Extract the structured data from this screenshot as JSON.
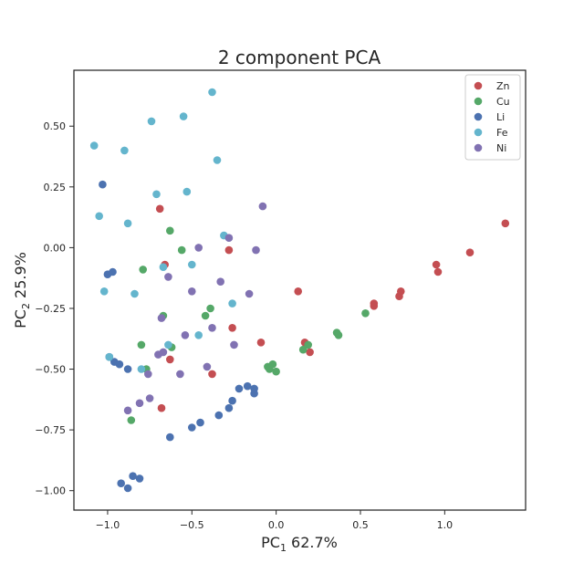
{
  "chart_data": {
    "type": "scatter",
    "title": "2 component PCA",
    "xlabel": {
      "base": "PC",
      "sub": "1",
      "suffix": " 62.7%"
    },
    "ylabel": {
      "base": "PC",
      "sub": "2",
      "suffix": " 25.9%"
    },
    "xlim": [
      -1.2,
      1.48
    ],
    "ylim": [
      -1.08,
      0.73
    ],
    "xticks": [
      -1.0,
      -0.5,
      0.0,
      0.5,
      1.0
    ],
    "xtick_labels": [
      "−1.0",
      "−0.5",
      "0.0",
      "0.5",
      "1.0"
    ],
    "yticks": [
      -1.0,
      -0.75,
      -0.5,
      -0.25,
      0.0,
      0.25,
      0.5
    ],
    "ytick_labels": [
      "−1.00",
      "−0.75",
      "−0.50",
      "−0.25",
      "0.00",
      "0.25",
      "0.50"
    ],
    "grid": false,
    "legend_position": "top-right",
    "series": [
      {
        "name": "Zn",
        "color": "#c44e52",
        "points": [
          [
            -0.69,
            0.16
          ],
          [
            -0.66,
            -0.07
          ],
          [
            -0.28,
            -0.01
          ],
          [
            -0.63,
            -0.46
          ],
          [
            -0.38,
            -0.52
          ],
          [
            -0.68,
            -0.66
          ],
          [
            -0.26,
            -0.33
          ],
          [
            -0.09,
            -0.39
          ],
          [
            0.13,
            -0.18
          ],
          [
            0.17,
            -0.39
          ],
          [
            0.2,
            -0.43
          ],
          [
            0.58,
            -0.23
          ],
          [
            0.58,
            -0.24
          ],
          [
            0.73,
            -0.2
          ],
          [
            0.74,
            -0.18
          ],
          [
            0.95,
            -0.07
          ],
          [
            0.96,
            -0.1
          ],
          [
            1.15,
            -0.02
          ],
          [
            1.36,
            0.1
          ]
        ]
      },
      {
        "name": "Cu",
        "color": "#55a868",
        "points": [
          [
            -0.63,
            0.07
          ],
          [
            -0.56,
            -0.01
          ],
          [
            -0.79,
            -0.09
          ],
          [
            -0.39,
            -0.25
          ],
          [
            -0.42,
            -0.28
          ],
          [
            -0.67,
            -0.28
          ],
          [
            -0.8,
            -0.4
          ],
          [
            -0.62,
            -0.41
          ],
          [
            -0.77,
            -0.5
          ],
          [
            -0.86,
            -0.71
          ],
          [
            -0.05,
            -0.49
          ],
          [
            -0.04,
            -0.5
          ],
          [
            -0.02,
            -0.48
          ],
          [
            -0.0,
            -0.51
          ],
          [
            0.16,
            -0.42
          ],
          [
            0.19,
            -0.4
          ],
          [
            0.36,
            -0.35
          ],
          [
            0.37,
            -0.36
          ],
          [
            0.53,
            -0.27
          ]
        ]
      },
      {
        "name": "Li",
        "color": "#4c72b0",
        "points": [
          [
            -1.03,
            0.26
          ],
          [
            -1.0,
            -0.11
          ],
          [
            -0.97,
            -0.1
          ],
          [
            -0.99,
            -0.45
          ],
          [
            -0.96,
            -0.47
          ],
          [
            -0.93,
            -0.48
          ],
          [
            -0.88,
            -0.5
          ],
          [
            -0.92,
            -0.97
          ],
          [
            -0.88,
            -0.99
          ],
          [
            -0.85,
            -0.94
          ],
          [
            -0.81,
            -0.95
          ],
          [
            -0.63,
            -0.78
          ],
          [
            -0.5,
            -0.74
          ],
          [
            -0.45,
            -0.72
          ],
          [
            -0.34,
            -0.69
          ],
          [
            -0.28,
            -0.66
          ],
          [
            -0.26,
            -0.63
          ],
          [
            -0.22,
            -0.58
          ],
          [
            -0.17,
            -0.57
          ],
          [
            -0.13,
            -0.58
          ],
          [
            -0.13,
            -0.6
          ]
        ]
      },
      {
        "name": "Fe",
        "color": "#64b5cd",
        "points": [
          [
            -1.08,
            0.42
          ],
          [
            -0.9,
            0.4
          ],
          [
            -0.74,
            0.52
          ],
          [
            -0.55,
            0.54
          ],
          [
            -0.38,
            0.64
          ],
          [
            -0.35,
            0.36
          ],
          [
            -1.05,
            0.13
          ],
          [
            -0.88,
            0.1
          ],
          [
            -0.71,
            0.22
          ],
          [
            -0.53,
            0.23
          ],
          [
            -0.31,
            0.05
          ],
          [
            -0.67,
            -0.08
          ],
          [
            -0.5,
            -0.07
          ],
          [
            -1.02,
            -0.18
          ],
          [
            -0.84,
            -0.19
          ],
          [
            -0.26,
            -0.23
          ],
          [
            -0.46,
            -0.36
          ],
          [
            -0.64,
            -0.4
          ],
          [
            -0.99,
            -0.45
          ],
          [
            -0.8,
            -0.5
          ]
        ]
      },
      {
        "name": "Ni",
        "color": "#8172b2",
        "points": [
          [
            -0.46,
            0.0
          ],
          [
            -0.28,
            0.04
          ],
          [
            -0.08,
            0.17
          ],
          [
            -0.12,
            -0.01
          ],
          [
            -0.64,
            -0.12
          ],
          [
            -0.33,
            -0.14
          ],
          [
            -0.5,
            -0.18
          ],
          [
            -0.16,
            -0.19
          ],
          [
            -0.68,
            -0.29
          ],
          [
            -0.54,
            -0.36
          ],
          [
            -0.38,
            -0.33
          ],
          [
            -0.25,
            -0.4
          ],
          [
            -0.67,
            -0.43
          ],
          [
            -0.7,
            -0.44
          ],
          [
            -0.76,
            -0.52
          ],
          [
            -0.57,
            -0.52
          ],
          [
            -0.41,
            -0.49
          ],
          [
            -0.75,
            -0.62
          ],
          [
            -0.81,
            -0.64
          ],
          [
            -0.88,
            -0.67
          ]
        ]
      }
    ]
  }
}
